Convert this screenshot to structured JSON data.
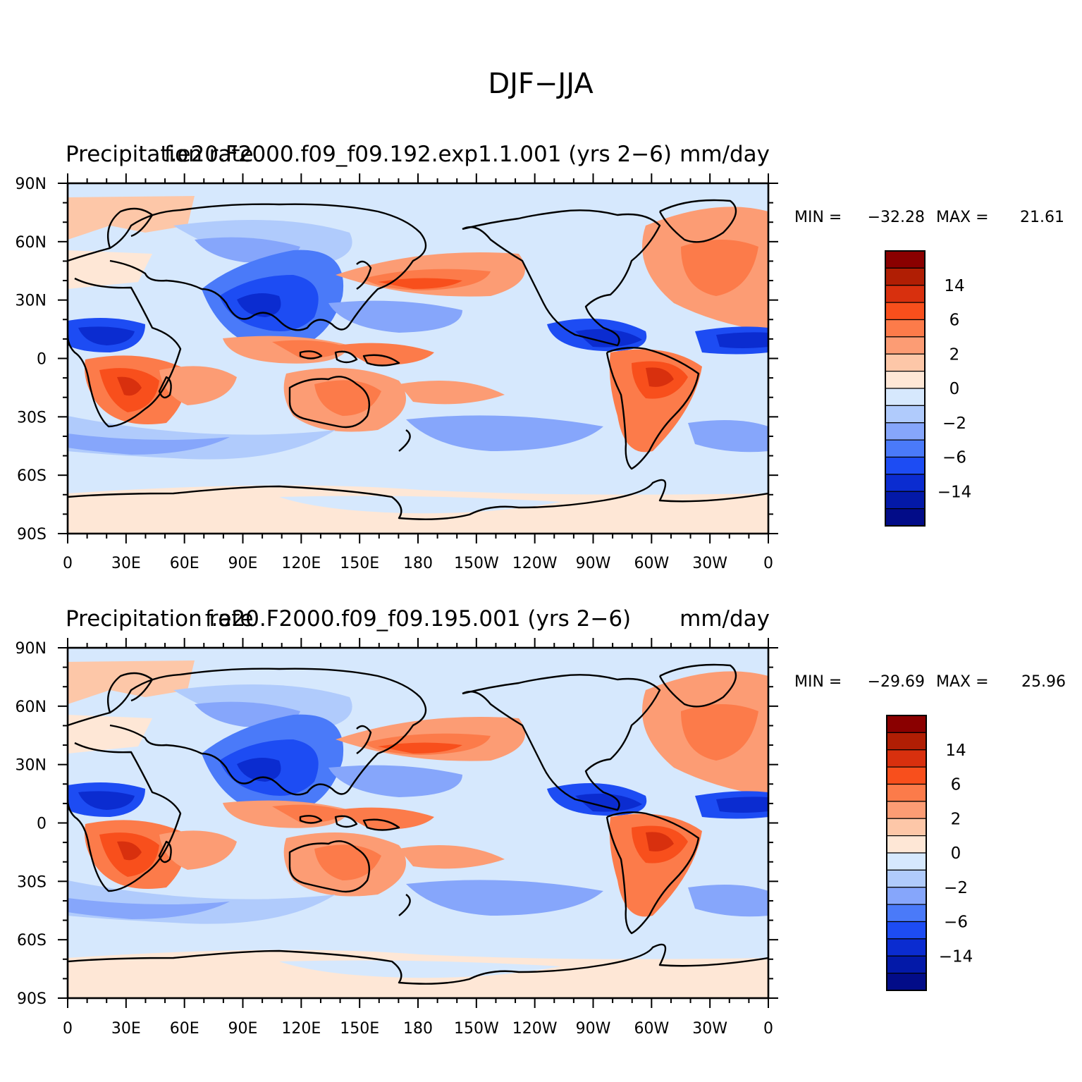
{
  "main_title": "DJF-JJA",
  "panels": [
    {
      "left_string": "Precipitation rate",
      "center_string": "f.e20.F2000.f09_f09.192.exp1.1.001 (yrs 2-6)",
      "right_string": "mm/day",
      "min_label": "MIN =",
      "min_value": "-32.28",
      "max_label": "MAX =",
      "max_value": "21.61"
    },
    {
      "left_string": "Precipitation rate",
      "center_string": "f.e20.F2000.f09_f09.195.001 (yrs 2-6)",
      "right_string": "mm/day",
      "min_label": "MIN =",
      "min_value": "-29.69",
      "max_label": "MAX =",
      "max_value": "25.96"
    }
  ],
  "lat_labels": [
    "90N",
    "60N",
    "30N",
    "0",
    "30S",
    "60S",
    "90S"
  ],
  "lon_labels": [
    "0",
    "30E",
    "60E",
    "90E",
    "120E",
    "150E",
    "180",
    "150W",
    "120W",
    "90W",
    "60W",
    "30W",
    "0"
  ],
  "colorbar": {
    "colors": [
      "#8a0000",
      "#b01e04",
      "#d8300e",
      "#f84f1c",
      "#fc7b4a",
      "#fc9c74",
      "#fdc7a8",
      "#fee7d6",
      "#d6e8fd",
      "#b0cbfc",
      "#86a6fb",
      "#4a7af9",
      "#1d4cf3",
      "#0b2cd0",
      "#0319a8",
      "#020c88"
    ],
    "labels": [
      "14",
      "6",
      "2",
      "0",
      "-2",
      "-6",
      "-14"
    ]
  },
  "colors": {
    "land_outline": "#000000",
    "background": "#d6e8fd"
  }
}
